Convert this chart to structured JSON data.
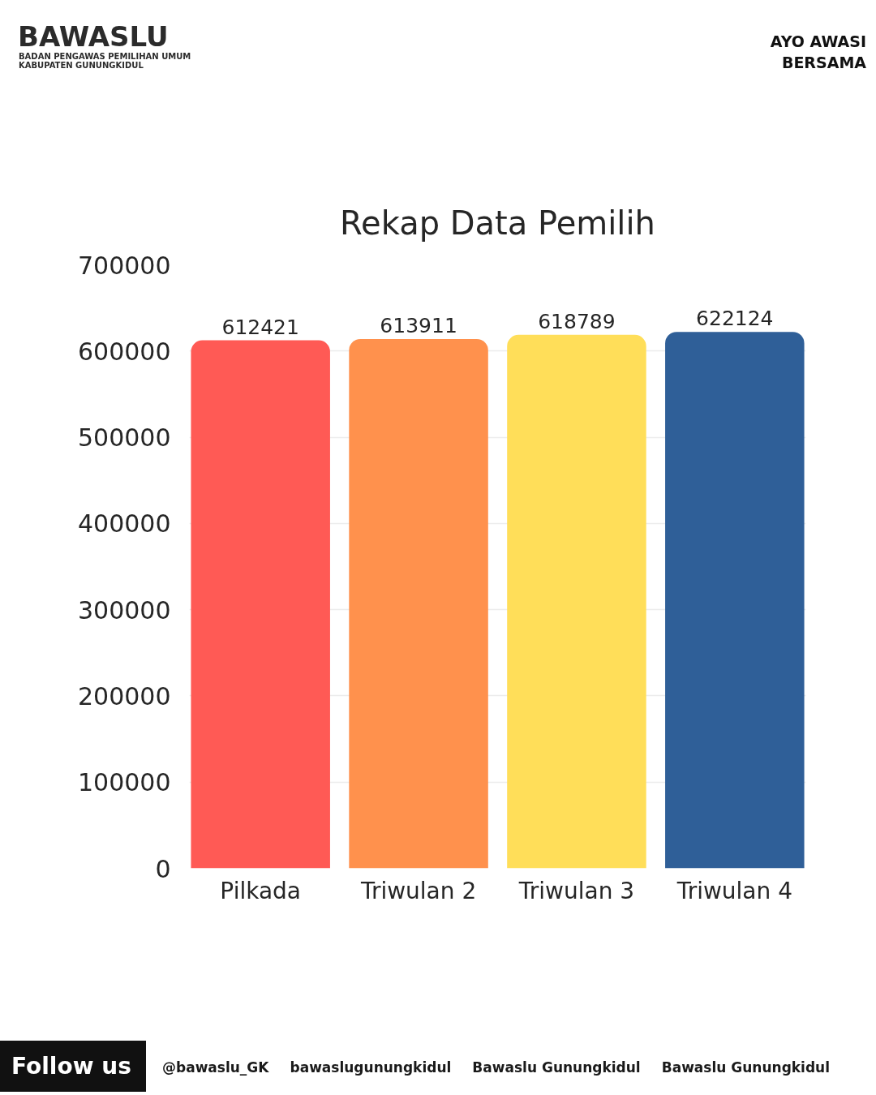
{
  "chart_data": {
    "type": "bar",
    "title": "Rekap Data Pemilih",
    "categories": [
      "Pilkada",
      "Triwulan 2",
      "Triwulan 3",
      "Triwulan 4"
    ],
    "values": [
      612421,
      613911,
      618789,
      622124
    ],
    "colors": [
      "#ff5a55",
      "#ff914d",
      "#ffde59",
      "#2f5f98"
    ],
    "ylim": [
      0,
      700000
    ],
    "yticks": [
      0,
      100000,
      200000,
      300000,
      400000,
      500000,
      600000,
      700000
    ],
    "grid": "y",
    "data_labels": true,
    "annotations": [
      "BAWASLU",
      "BADAN PENGAWAS PEMILIHAN UMUM",
      "KABUPATEN GUNUNGKIDUL",
      "AYO AWASI BERSAMA",
      "Follow us",
      "@bawaslu_GK",
      "bawaslugunungkidul",
      "Bawaslu Gunungkidul",
      "Bawaslu Gunungkidul"
    ]
  }
}
